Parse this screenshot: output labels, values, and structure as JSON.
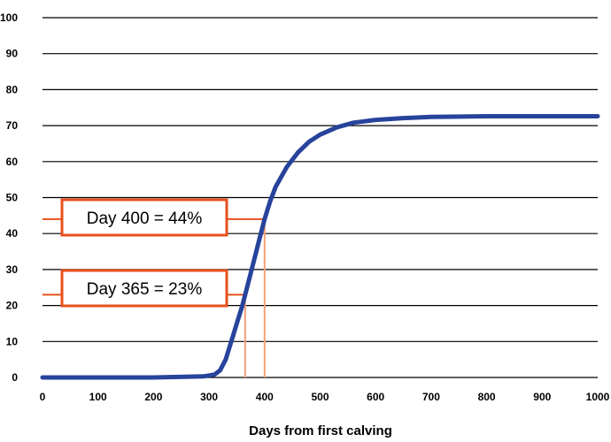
{
  "chart_data": {
    "type": "line",
    "xlabel": "Days from first calving",
    "ylabel": "",
    "xlim": [
      0,
      1000
    ],
    "ylim": [
      0,
      100
    ],
    "x_ticks": [
      "0",
      "100",
      "200",
      "300",
      "400",
      "500",
      "600",
      "700",
      "800",
      "900",
      "1000"
    ],
    "y_ticks": [
      "0",
      "10",
      "20",
      "30",
      "40",
      "50",
      "60",
      "70",
      "80",
      "90",
      "100"
    ],
    "grid": true,
    "series": [
      {
        "color": "#27439b",
        "x": [
          0,
          100,
          200,
          290,
          310,
          320,
          330,
          340,
          350,
          360,
          365,
          370,
          380,
          390,
          400,
          410,
          420,
          440,
          460,
          480,
          500,
          530,
          560,
          600,
          650,
          700,
          750,
          800,
          900,
          1000
        ],
        "y": [
          0,
          0,
          0,
          0.3,
          0.8,
          2,
          5,
          10,
          15,
          20,
          23,
          26,
          32,
          38,
          44,
          49,
          53,
          58.5,
          62.5,
          65.5,
          67.5,
          69.5,
          70.8,
          71.6,
          72.1,
          72.4,
          72.5,
          72.6,
          72.6,
          72.6
        ]
      }
    ],
    "annotations": [
      {
        "text": "Day 400 = 44%",
        "x": 400,
        "y": 44,
        "color": "#e8501e"
      },
      {
        "text": "Day 365 = 23%",
        "x": 365,
        "y": 23,
        "color": "#e8501e"
      }
    ],
    "colors": {
      "grid": "#000000",
      "callout": "#e8501e",
      "reference": "#f4a07a",
      "curve": "#27439b"
    }
  }
}
